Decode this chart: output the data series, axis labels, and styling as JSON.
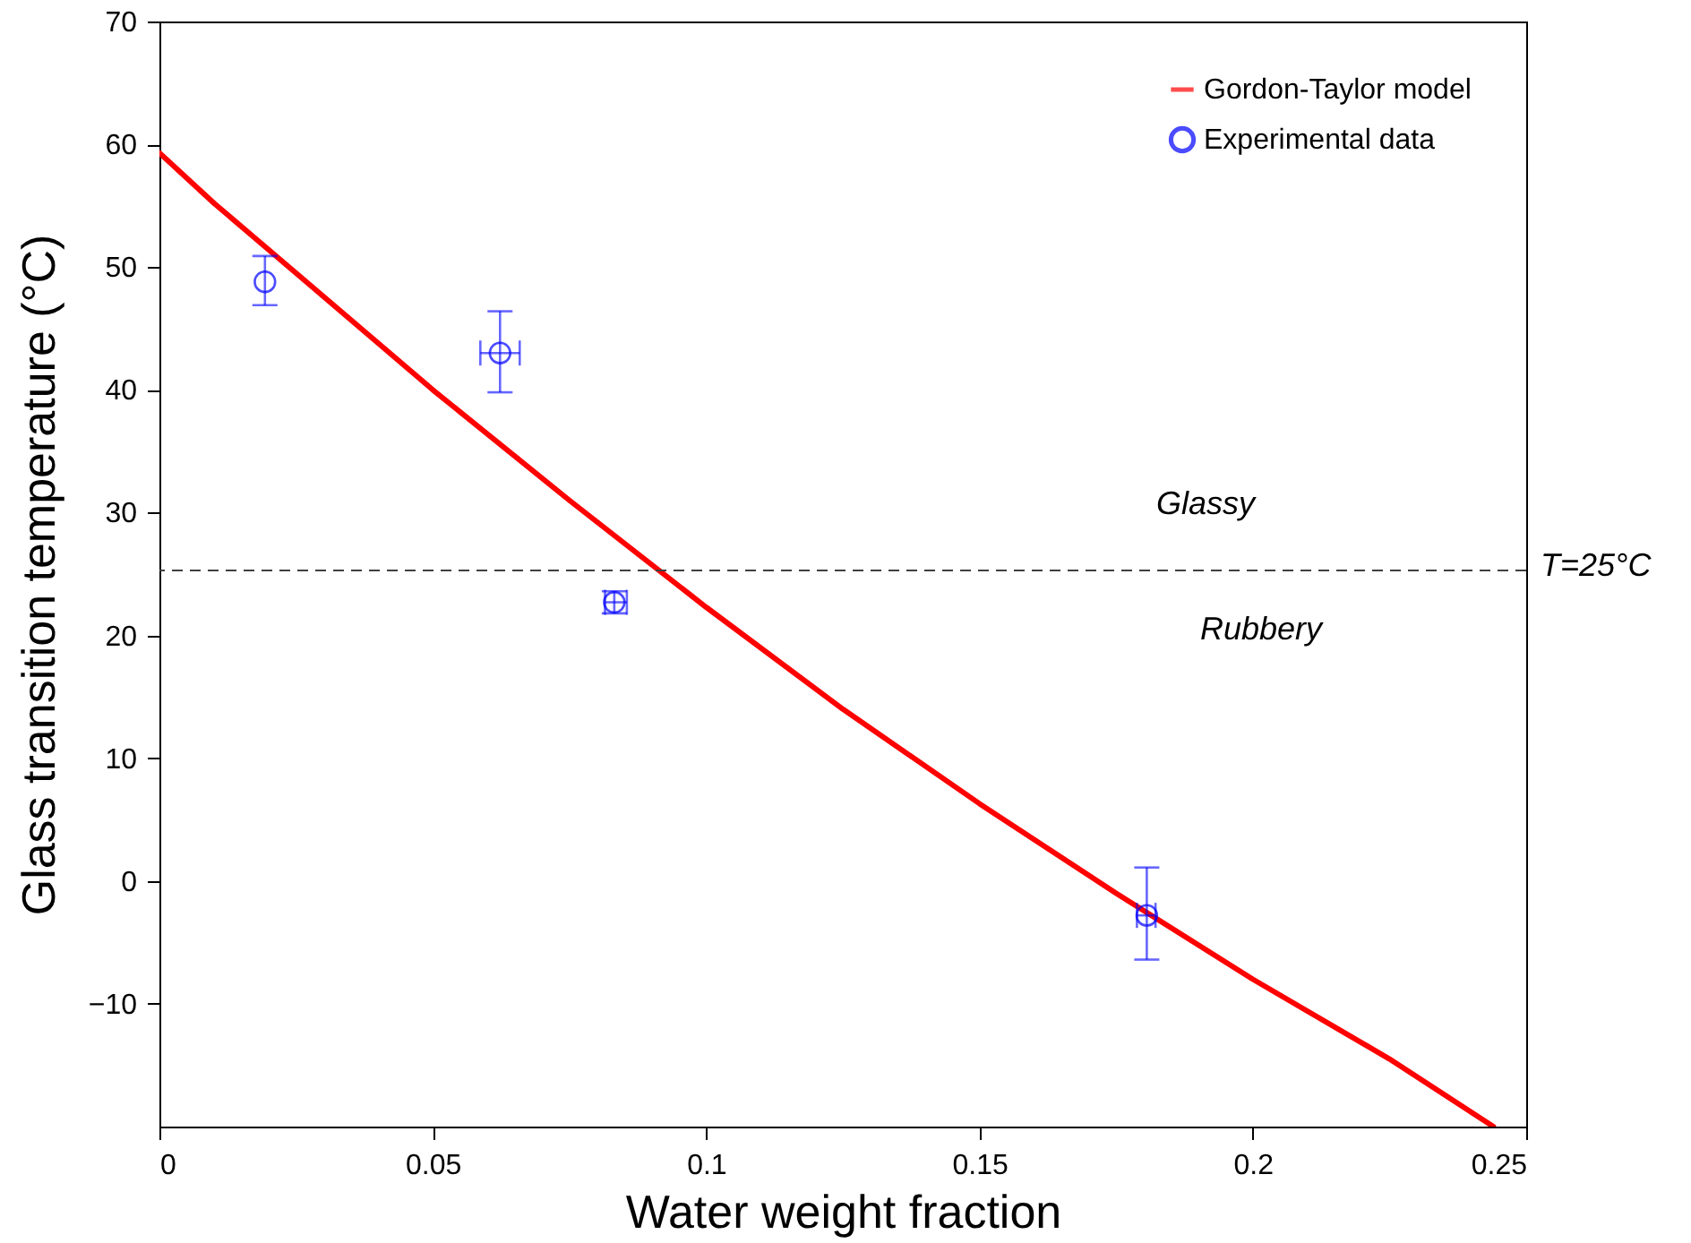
{
  "chart_data": {
    "type": "line",
    "xlabel": "Water weight fraction",
    "ylabel": "Glass transition temperature (°C)",
    "xlim": [
      0,
      0.25
    ],
    "ylim": [
      -20,
      70
    ],
    "xticks": [
      0,
      0.05,
      0.1,
      0.15,
      0.2,
      0.25
    ],
    "yticks": [
      -10,
      0,
      10,
      20,
      30,
      40,
      50,
      60,
      70
    ],
    "grid": false,
    "legend": "top right",
    "series": [
      {
        "name": "Gordon-Taylor model",
        "type": "line",
        "color": "#ff0000",
        "marker": "none",
        "x": [
          0,
          0.01,
          0.025,
          0.05,
          0.075,
          0.1,
          0.125,
          0.15,
          0.175,
          0.2,
          0.225,
          0.244
        ],
        "values": [
          59.3,
          55.2,
          49.5,
          40,
          31,
          22.3,
          14,
          6.3,
          -1,
          -8,
          -14.5,
          -20
        ]
      },
      {
        "name": "Experimental data",
        "type": "scatter",
        "color": "#0000ff",
        "marker": "circle",
        "x": [
          0.0193,
          0.0623,
          0.0832,
          0.1806
        ],
        "values": [
          48.8,
          43.0,
          22.7,
          -2.8
        ],
        "errors": [
          [
            46.9,
            50.9
          ],
          [
            39.8,
            46.4
          ],
          [
            21.8,
            23.6
          ],
          [
            -6.4,
            1.1
          ]
        ],
        "xerrors": [
          null,
          [
            0.0587,
            0.0659
          ],
          [
            0.0815,
            0.0855
          ],
          [
            0.1788,
            0.1822
          ]
        ]
      }
    ],
    "ref_lines": [
      {
        "axis": "y",
        "value": 25.3,
        "label": "T=25°C",
        "color": "#404040",
        "line_style": "dashed"
      }
    ],
    "annotations": [
      "Glassy",
      "Rubbery"
    ]
  }
}
